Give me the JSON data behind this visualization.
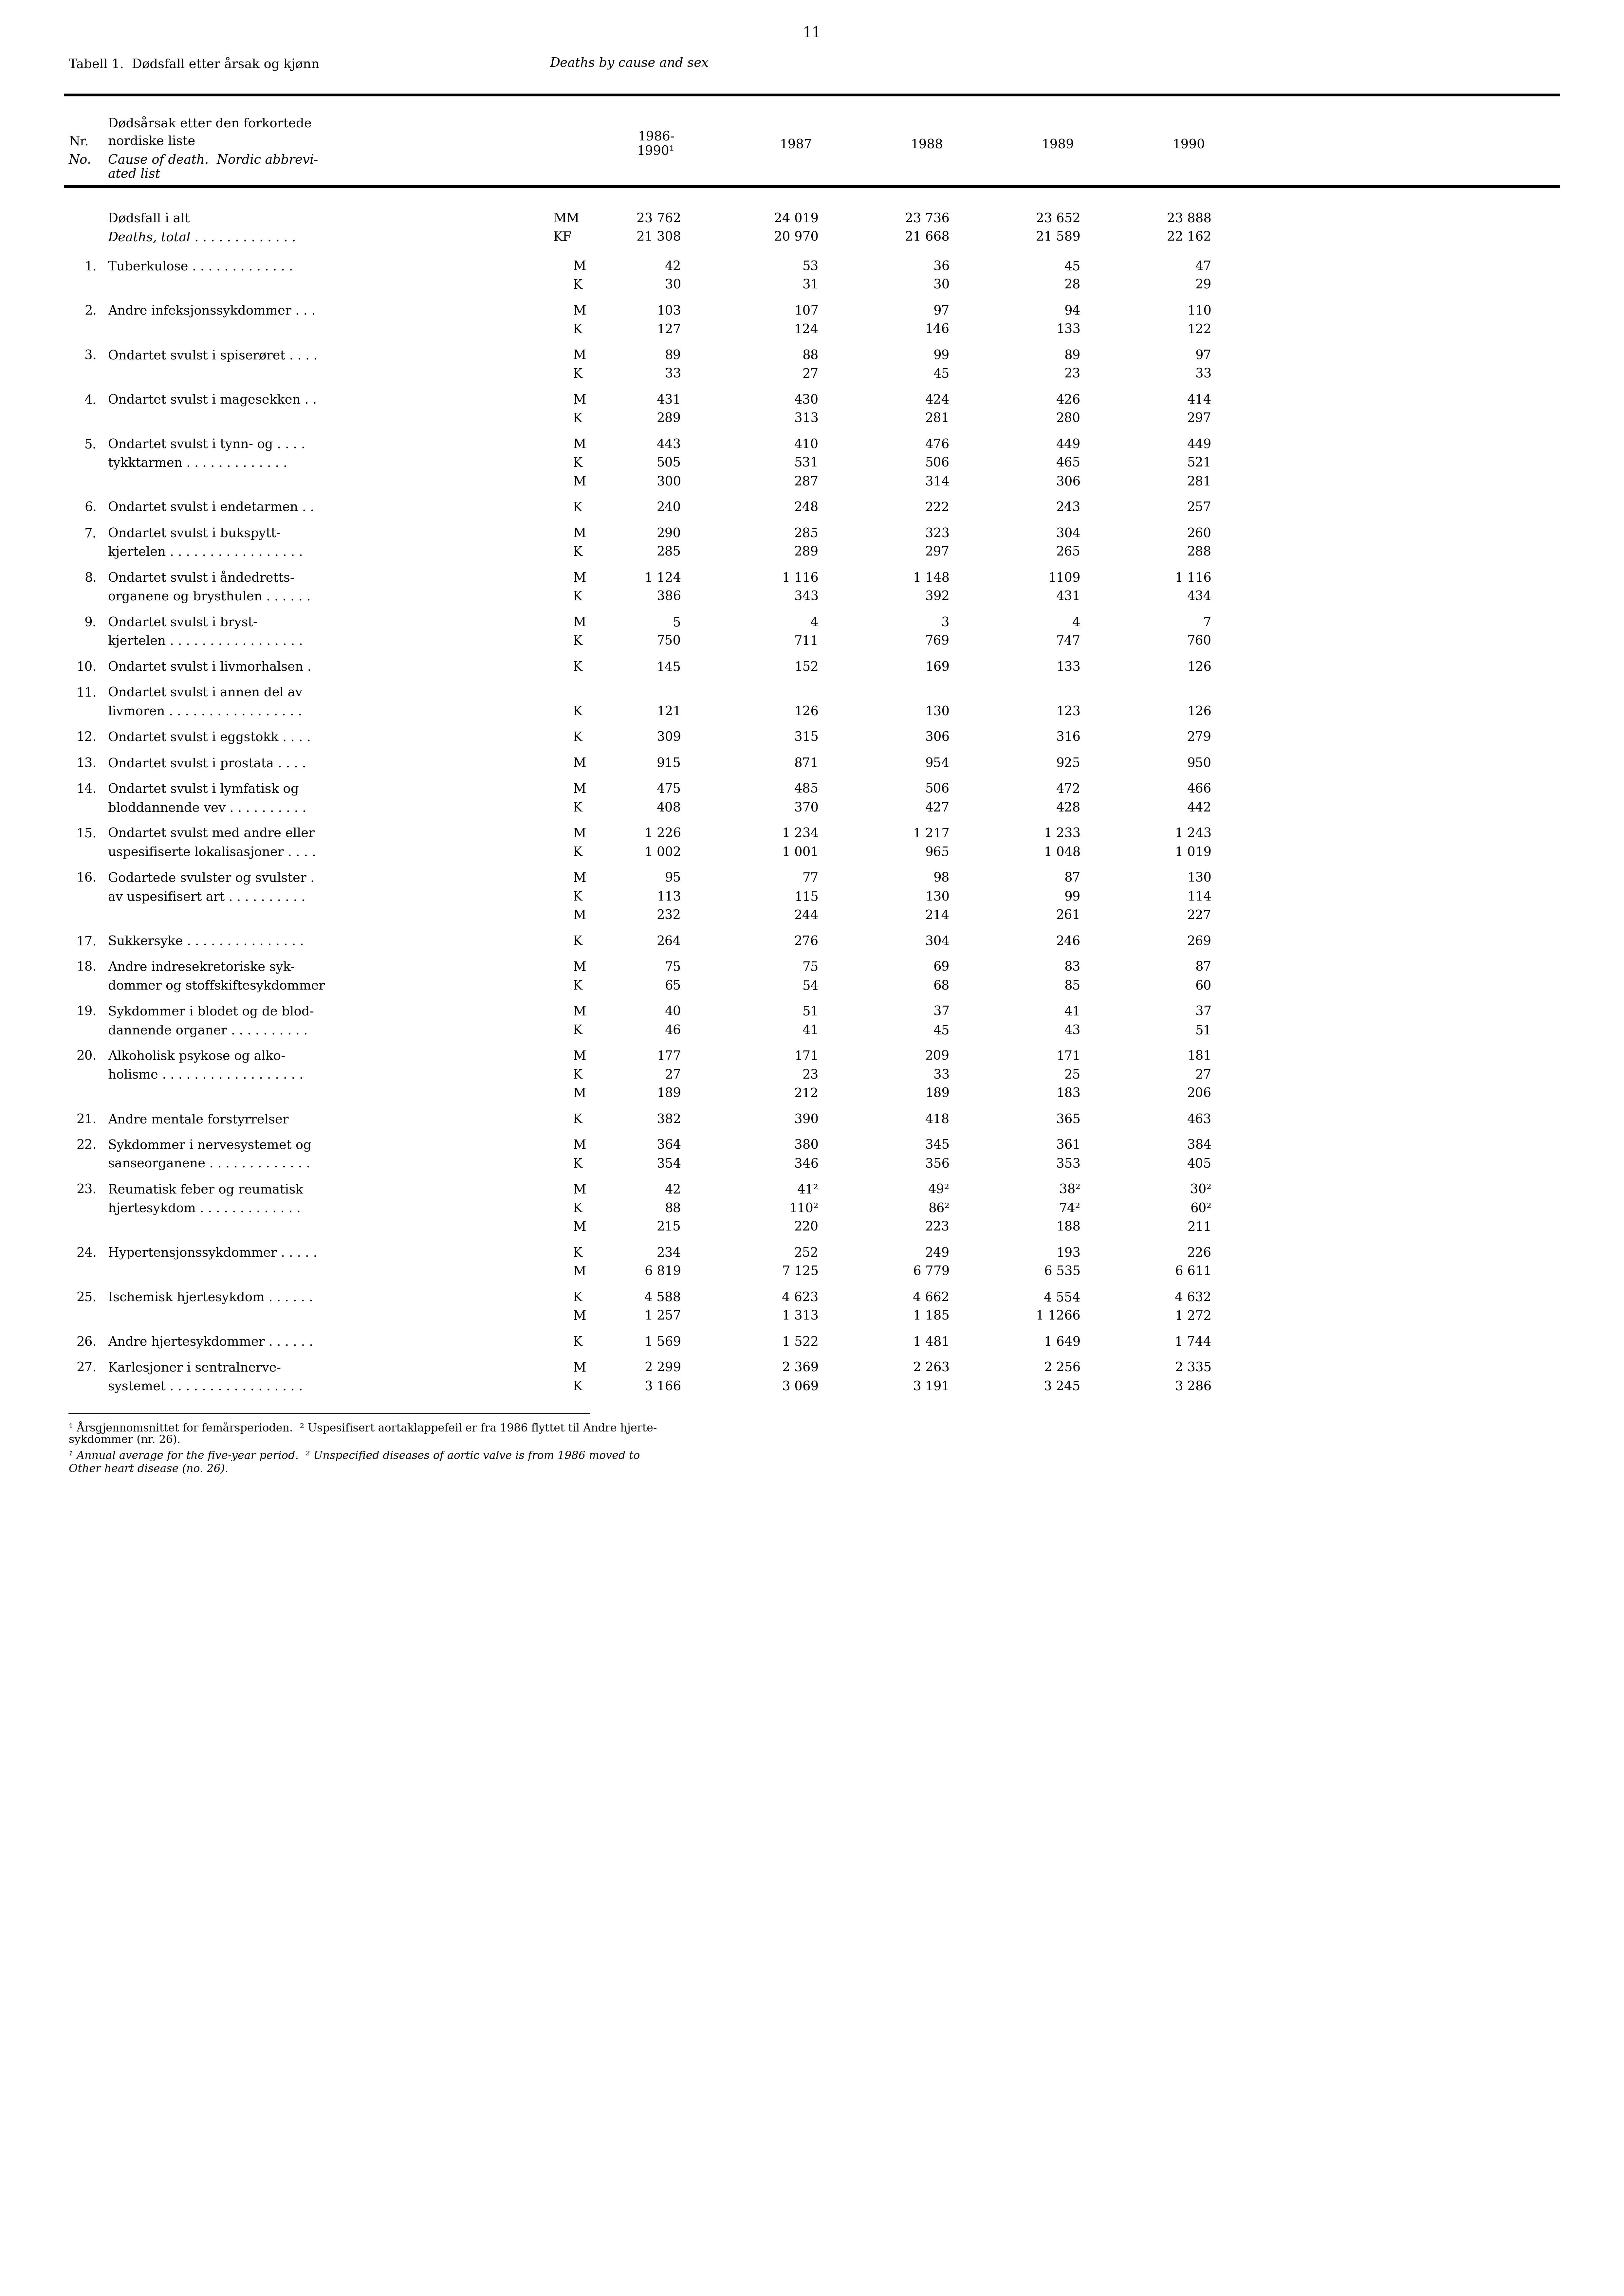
{
  "page_number": "11",
  "title_normal": "Tabell 1.  Dødsfall etter årsak og kjønn",
  "title_italic": "Deaths by cause and sex",
  "background_color": "#ffffff",
  "text_color": "#000000"
}
